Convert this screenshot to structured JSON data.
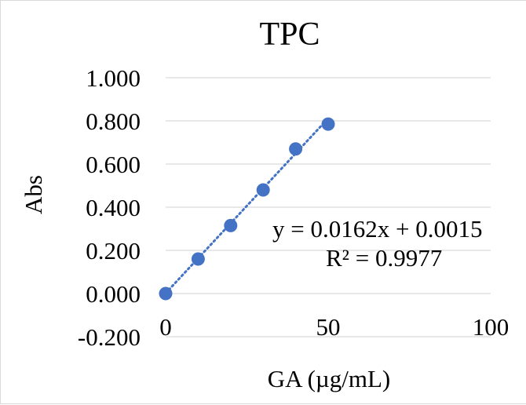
{
  "chart_data": {
    "type": "scatter",
    "title": "TPC",
    "xlabel": "GA (µg/mL)",
    "ylabel": "Abs",
    "xlim": [
      0,
      100
    ],
    "ylim": [
      -0.2,
      1.0
    ],
    "x_ticks": [
      0,
      50,
      100
    ],
    "x_tick_labels": [
      "0",
      "50",
      "100"
    ],
    "y_ticks": [
      -0.2,
      0.0,
      0.2,
      0.4,
      0.6,
      0.8,
      1.0
    ],
    "y_tick_labels": [
      "-0.200",
      "0.000",
      "0.200",
      "0.400",
      "0.600",
      "0.800",
      "1.000"
    ],
    "grid": "horizontal",
    "legend": "none",
    "series": [
      {
        "x": [
          0,
          10,
          20,
          30,
          40,
          50
        ],
        "y": [
          0.0,
          0.16,
          0.315,
          0.48,
          0.67,
          0.785
        ],
        "color": "#4472c4",
        "marker": "circle"
      }
    ],
    "trendline": {
      "kind": "linear",
      "slope": 0.0162,
      "intercept": 0.0015,
      "x_range": [
        0,
        50
      ],
      "style": "dotted",
      "color": "#4472c4"
    },
    "annotations": {
      "equation": "y = 0.0162x + 0.0015",
      "r_squared": "R² = 0.9977"
    },
    "colors": {
      "marker": "#4472c4",
      "gridline": "#d9d9d9"
    }
  }
}
